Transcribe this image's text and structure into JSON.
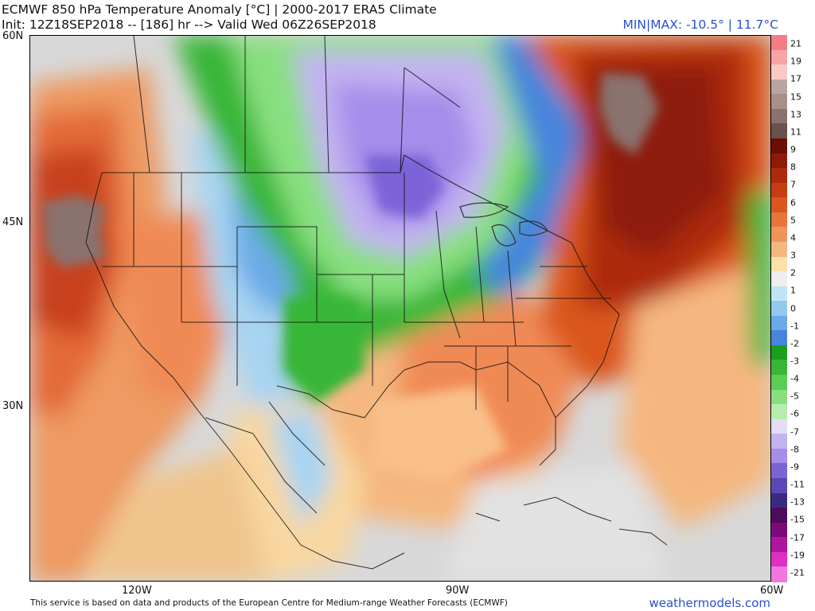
{
  "header": {
    "title": "ECMWF 850 hPa Temperature Anomaly [°C] | 2000-2017 ERA5 Climate",
    "init": "Init: 12Z18SEP2018 -- [186] hr --> Valid Wed 06Z26SEP2018",
    "minmax": "MIN|MAX: -10.5° | 11.7°C"
  },
  "latitude_labels": [
    "60N",
    "45N",
    "30N"
  ],
  "longitude_labels": [
    "120W",
    "90W",
    "60W"
  ],
  "legend": {
    "unit": "°C",
    "labels": [
      "21",
      "19",
      "17",
      "15",
      "13",
      "11",
      "9",
      "8",
      "7",
      "6",
      "5",
      "4",
      "3",
      "2",
      "1",
      "0",
      "-1",
      "-2",
      "-3",
      "-4",
      "-5",
      "-6",
      "-7",
      "-8",
      "-9",
      "-11",
      "-13",
      "-15",
      "-17",
      "-19",
      "-21"
    ],
    "colors": [
      "#f47d86",
      "#f7a3a8",
      "#f9c8c7",
      "#b8a4a1",
      "#a88f8a",
      "#8a726e",
      "#6a524c",
      "#6b0f05",
      "#8e1a08",
      "#ad2a0c",
      "#c63d12",
      "#da561d",
      "#e9743a",
      "#f0955a",
      "#f5b77f",
      "#fbe0aa",
      "#eeeeee",
      "#c0e4f6",
      "#94c8ef",
      "#6aaae6",
      "#4685db",
      "#1a9e1d",
      "#37b637",
      "#5ccc56",
      "#88df7f",
      "#b7ecae",
      "#e4ddf6",
      "#c3b3f1",
      "#a48deb",
      "#7c63d8",
      "#5b47b5",
      "#3c2a82",
      "#4d0d5c",
      "#7d0a7a",
      "#b0159e",
      "#e02fc3",
      "#f276de"
    ]
  },
  "footer": {
    "credit": "This service is based on data and products of the European Centre for Medium-range Weather Forecasts (ECMWF)",
    "brand": "weathermodels.com"
  }
}
